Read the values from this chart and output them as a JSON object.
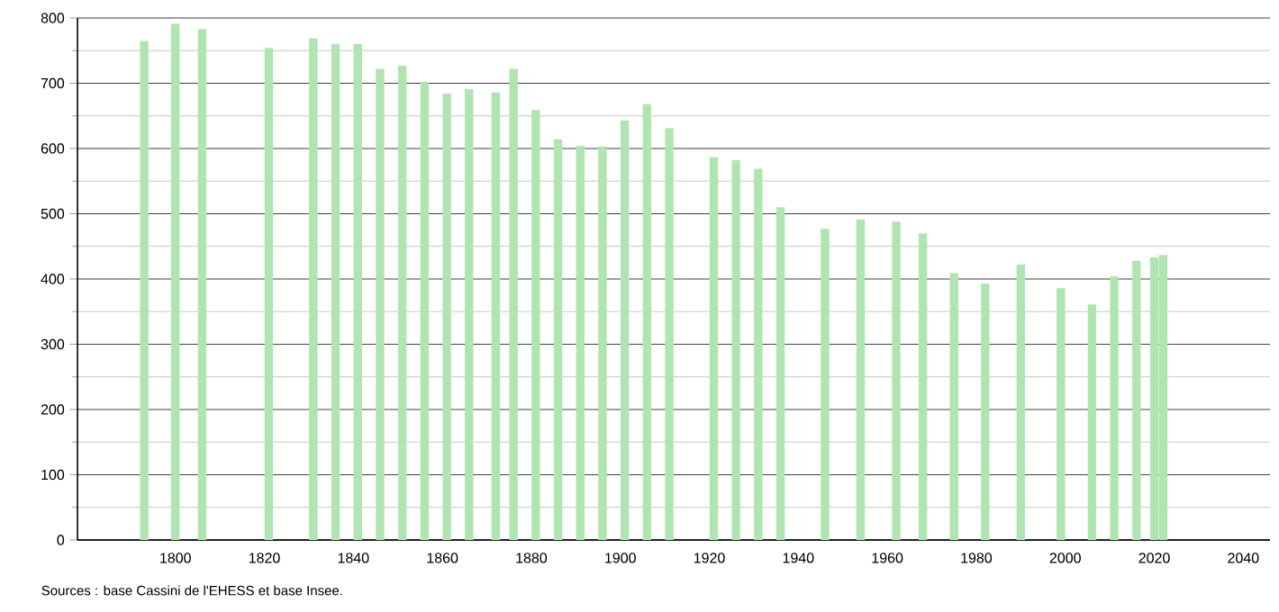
{
  "chart_data": {
    "type": "bar",
    "color": "#b0e4b0",
    "x": [
      1793,
      1800,
      1806,
      1821,
      1831,
      1836,
      1841,
      1846,
      1851,
      1856,
      1861,
      1866,
      1872,
      1876,
      1881,
      1886,
      1891,
      1896,
      1901,
      1906,
      1911,
      1921,
      1926,
      1931,
      1936,
      1946,
      1954,
      1962,
      1968,
      1975,
      1982,
      1990,
      1999,
      2006,
      2011,
      2016,
      2020,
      2022
    ],
    "values": [
      765,
      791,
      783,
      754,
      769,
      760,
      760,
      722,
      727,
      702,
      684,
      691,
      686,
      722,
      659,
      614,
      604,
      603,
      643,
      668,
      631,
      587,
      582,
      569,
      510,
      477,
      491,
      488,
      470,
      409,
      393,
      422,
      386,
      361,
      404,
      428,
      433,
      437
    ],
    "xlim": [
      1778,
      2046
    ],
    "xticks": [
      1800,
      1820,
      1840,
      1860,
      1880,
      1900,
      1920,
      1940,
      1960,
      1980,
      2000,
      2020,
      2040
    ],
    "ylim": [
      0,
      800
    ],
    "yticks": [
      0,
      100,
      200,
      300,
      400,
      500,
      600,
      700,
      800
    ],
    "grid": "y",
    "annotations": [
      "Sources : base Cassini de l'EHESS et base Insee."
    ]
  }
}
